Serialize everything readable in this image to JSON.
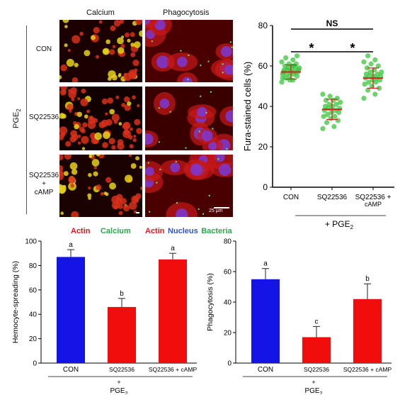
{
  "micrograph_panel": {
    "column_headers": [
      "Calcium",
      "Phagocytosis"
    ],
    "group_label": "PGE",
    "group_label_sub": "2",
    "row_labels": [
      {
        "lines": [
          "CON"
        ]
      },
      {
        "lines": [
          "SQ22536"
        ]
      },
      {
        "lines": [
          "SQ22536",
          "+",
          "cAMP"
        ]
      }
    ],
    "scale_bar": "25 μm",
    "legend_left": [
      {
        "text": "Actin",
        "color": "#e8141c"
      },
      {
        "text": "Calcium",
        "color": "#2aa84a"
      }
    ],
    "legend_right": [
      {
        "text": "Actin",
        "color": "#e8141c"
      },
      {
        "text": "Nucleus",
        "color": "#2f55d4"
      },
      {
        "text": "Bacteria",
        "color": "#2aa84a"
      }
    ]
  },
  "chart_data": [
    {
      "type": "scatter",
      "ylabel": "Fura-stained cells (%)",
      "ylim": [
        0,
        80
      ],
      "yticks": [
        0,
        20,
        40,
        60,
        80
      ],
      "categories": [
        "CON",
        "SQ22536",
        "SQ22536 +\ncAMP"
      ],
      "group_label": "+ PGE",
      "group_label_sub": "2",
      "means": [
        57,
        38.5,
        54
      ],
      "sd": [
        3.5,
        5,
        5
      ],
      "points": [
        [
          52,
          53,
          54,
          55,
          55,
          56,
          56,
          56,
          57,
          57,
          57,
          57,
          58,
          58,
          58,
          58,
          59,
          59,
          59,
          60,
          60,
          61,
          61,
          62,
          63,
          64,
          65,
          53,
          54,
          60
        ],
        [
          29,
          30,
          32,
          33,
          34,
          35,
          35,
          36,
          37,
          37,
          38,
          38,
          39,
          39,
          40,
          40,
          41,
          41,
          42,
          43,
          43,
          44,
          45,
          46
        ],
        [
          44,
          46,
          48,
          49,
          50,
          51,
          52,
          52,
          53,
          53,
          54,
          54,
          55,
          55,
          55,
          56,
          56,
          57,
          57,
          58,
          59,
          60,
          61,
          62,
          63,
          65
        ]
      ],
      "point_color": "#3cc43c",
      "mean_color": "#d62020",
      "significance": [
        {
          "from": 0,
          "to": 2,
          "label": "NS",
          "level": 2
        },
        {
          "from": 0,
          "to": 1,
          "label": "*",
          "level": 1
        },
        {
          "from": 1,
          "to": 2,
          "label": "*",
          "level": 1
        }
      ]
    },
    {
      "type": "bar",
      "ylabel": "Hemocyte-spreading (%)",
      "ylim": [
        0,
        100
      ],
      "yticks": [
        0,
        20,
        40,
        60,
        80,
        100
      ],
      "categories": [
        "CON",
        "SQ22536",
        "SQ22536 + cAMP"
      ],
      "values": [
        87,
        46,
        85
      ],
      "errors": [
        6,
        7,
        5
      ],
      "letters": [
        "a",
        "b",
        "a"
      ],
      "colors": [
        "#1414e6",
        "#f20d0d",
        "#f20d0d"
      ],
      "group_label": "+",
      "group_sub_label": "PGE",
      "group_sub_label_sub": "2"
    },
    {
      "type": "bar",
      "ylabel": "Phagocytosis (%)",
      "ylim": [
        0,
        80
      ],
      "yticks": [
        0,
        20,
        40,
        60,
        80
      ],
      "categories": [
        "CON",
        "SQ22536",
        "SQ22536 + cAMP"
      ],
      "values": [
        55,
        17,
        42
      ],
      "errors": [
        7,
        7,
        10
      ],
      "letters": [
        "a",
        "c",
        "b"
      ],
      "colors": [
        "#1414e6",
        "#f20d0d",
        "#f20d0d"
      ],
      "group_label": "+",
      "group_sub_label": "PGE",
      "group_sub_label_sub": "2"
    }
  ]
}
